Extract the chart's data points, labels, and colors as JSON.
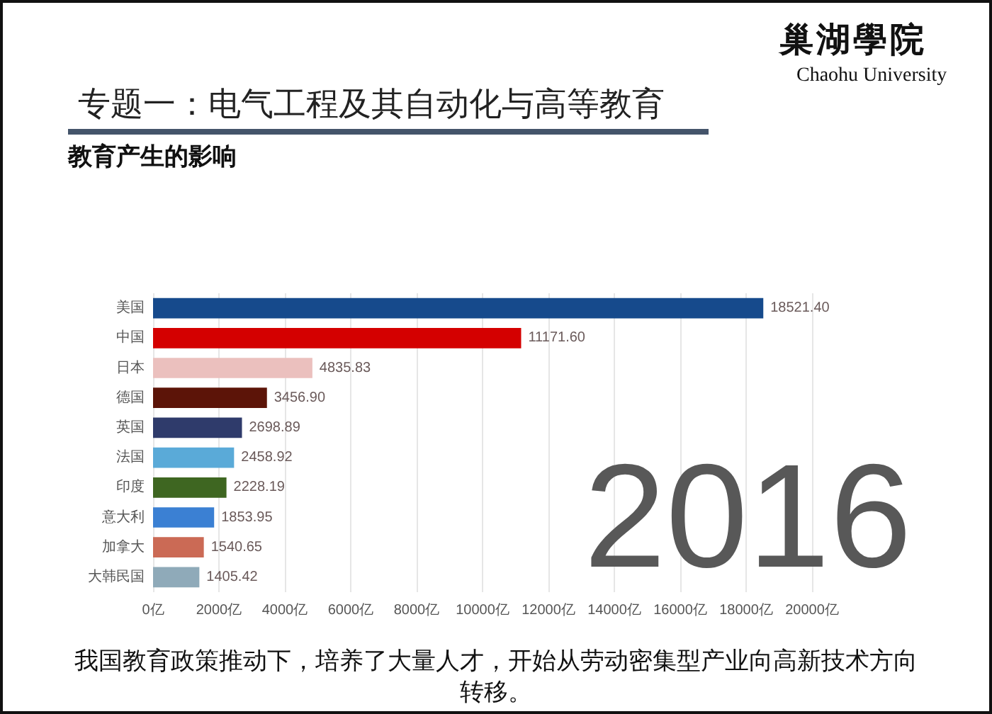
{
  "chart_data": {
    "type": "bar",
    "orientation": "horizontal",
    "title": "专题一：电气工程及其自动化与高等教育",
    "subtitle": "教育产生的影响",
    "categories": [
      "美国",
      "中国",
      "日本",
      "德国",
      "英国",
      "法国",
      "印度",
      "意大利",
      "加拿大",
      "大韩民国"
    ],
    "values": [
      18521.4,
      11171.6,
      4835.83,
      3456.9,
      2698.89,
      2458.92,
      2228.19,
      1853.95,
      1540.65,
      1405.42
    ],
    "value_labels": [
      "18521.40",
      "11171.60",
      "4835.83",
      "3456.90",
      "2698.89",
      "2458.92",
      "2228.19",
      "1853.95",
      "1540.65",
      "1405.42"
    ],
    "colors": [
      "#164a8c",
      "#d40000",
      "#ebc0be",
      "#5c1408",
      "#2f3b6b",
      "#5aaad8",
      "#3e6621",
      "#3b80d3",
      "#cb6a55",
      "#8faab9"
    ],
    "xlim": [
      0,
      20000
    ],
    "xticks": [
      {
        "value": 0,
        "label": "0亿"
      },
      {
        "value": 2000,
        "label": "2000亿"
      },
      {
        "value": 4000,
        "label": "4000亿"
      },
      {
        "value": 6000,
        "label": "6000亿"
      },
      {
        "value": 8000,
        "label": "8000亿"
      },
      {
        "value": 10000,
        "label": "10000亿"
      },
      {
        "value": 12000,
        "label": "12000亿"
      },
      {
        "value": 14000,
        "label": "14000亿"
      },
      {
        "value": 16000,
        "label": "16000亿"
      },
      {
        "value": 18000,
        "label": "18000亿"
      },
      {
        "value": 20000,
        "label": "20000亿"
      }
    ],
    "grid": "x",
    "annotations": [
      "2016",
      "我国教育政策推动下，培养了大量人才，开始从劳动密集型产业向高新技术方向转移。",
      "巢湖學院",
      "Chaohu University"
    ]
  }
}
